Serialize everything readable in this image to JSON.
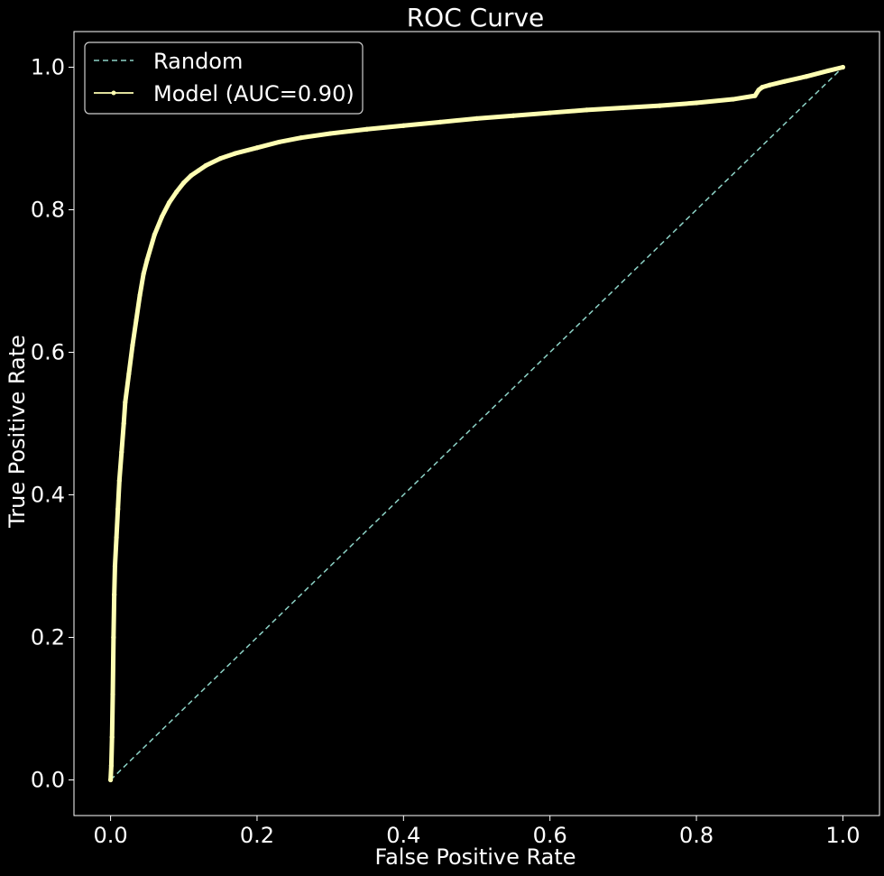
{
  "chart_data": {
    "type": "line",
    "title": "ROC Curve",
    "xlabel": "False Positive Rate",
    "ylabel": "True Positive Rate",
    "xlim": [
      -0.05,
      1.05
    ],
    "ylim": [
      -0.05,
      1.05
    ],
    "xticks": [
      0.0,
      0.2,
      0.4,
      0.6,
      0.8,
      1.0
    ],
    "yticks": [
      0.0,
      0.2,
      0.4,
      0.6,
      0.8,
      1.0
    ],
    "xtick_labels": [
      "0.0",
      "0.2",
      "0.4",
      "0.6",
      "0.8",
      "1.0"
    ],
    "ytick_labels": [
      "0.0",
      "0.2",
      "0.4",
      "0.6",
      "0.8",
      "1.0"
    ],
    "grid": false,
    "legend_position": "top-left",
    "series": [
      {
        "name": "Random",
        "style": "dashed",
        "color": "#8dd3c7",
        "x": [
          0.0,
          1.0
        ],
        "y": [
          0.0,
          1.0
        ]
      },
      {
        "name": "Model (AUC=0.90)",
        "style": "solid-with-markers",
        "color": "#ffffb3",
        "x": [
          0.0,
          0.001,
          0.002,
          0.003,
          0.004,
          0.005,
          0.006,
          0.008,
          0.01,
          0.012,
          0.015,
          0.018,
          0.02,
          0.025,
          0.03,
          0.035,
          0.04,
          0.045,
          0.05,
          0.06,
          0.07,
          0.08,
          0.09,
          0.1,
          0.11,
          0.12,
          0.13,
          0.15,
          0.17,
          0.2,
          0.23,
          0.26,
          0.3,
          0.35,
          0.4,
          0.45,
          0.5,
          0.55,
          0.6,
          0.65,
          0.7,
          0.75,
          0.8,
          0.85,
          0.88,
          0.885,
          0.89,
          0.9,
          0.92,
          0.95,
          0.98,
          1.0
        ],
        "y": [
          0.0,
          0.02,
          0.06,
          0.12,
          0.2,
          0.26,
          0.3,
          0.34,
          0.38,
          0.42,
          0.46,
          0.5,
          0.53,
          0.57,
          0.61,
          0.645,
          0.68,
          0.71,
          0.73,
          0.765,
          0.79,
          0.81,
          0.825,
          0.838,
          0.848,
          0.855,
          0.862,
          0.872,
          0.879,
          0.887,
          0.895,
          0.901,
          0.907,
          0.913,
          0.918,
          0.923,
          0.928,
          0.932,
          0.936,
          0.94,
          0.943,
          0.946,
          0.95,
          0.955,
          0.96,
          0.968,
          0.972,
          0.975,
          0.98,
          0.987,
          0.995,
          1.0
        ]
      }
    ]
  },
  "colors": {
    "background": "#000000",
    "axes": "#ffffff",
    "text": "#ffffff"
  }
}
